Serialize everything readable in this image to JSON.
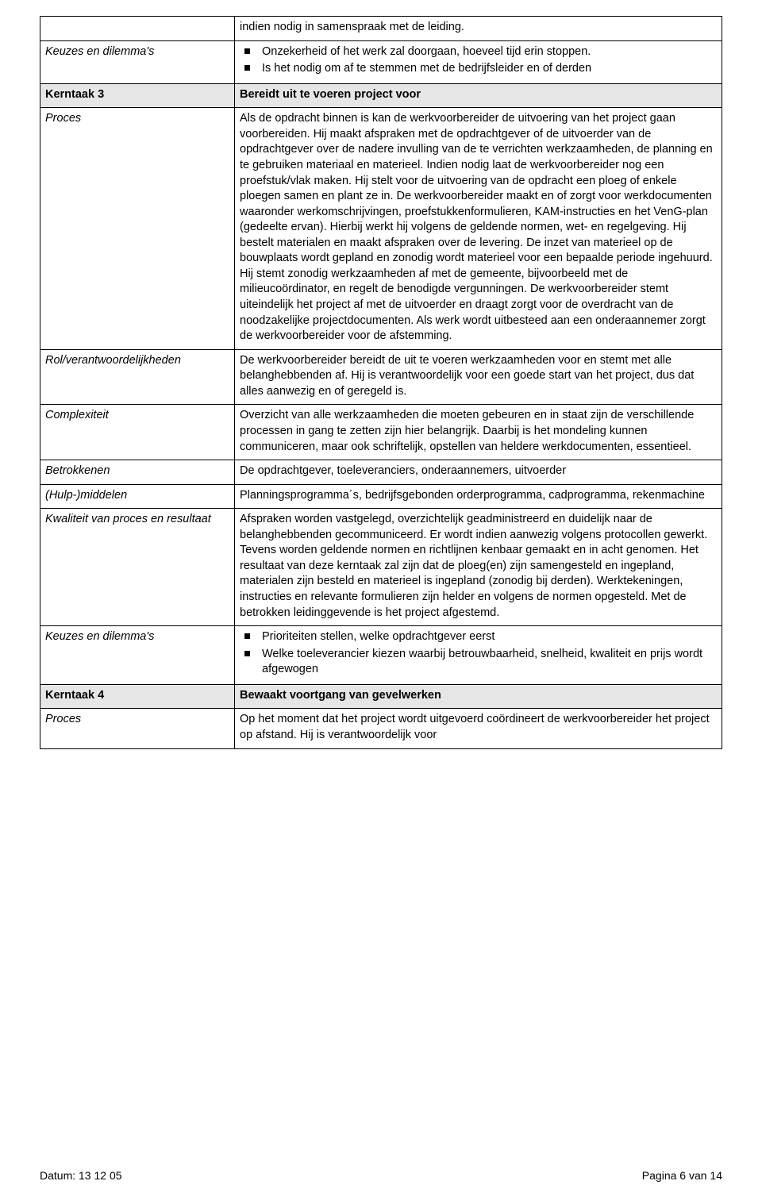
{
  "row1_top_text": "indien nodig in samenspraak met de leiding.",
  "labels": {
    "keuzes": "Keuzes en dilemma's",
    "kerntaak3": "Kerntaak 3",
    "proces": "Proces",
    "rol": "Rol/verantwoordelijkheden",
    "complexiteit": "Complexiteit",
    "betrokkenen": "Betrokkenen",
    "hulp": "(Hulp-)middelen",
    "kwaliteit": "Kwaliteit van proces en resultaat",
    "kerntaak4": "Kerntaak 4"
  },
  "keuzes1": {
    "b1": "Onzekerheid of het werk zal doorgaan, hoeveel tijd erin stoppen.",
    "b2": "Is het nodig om af te stemmen met de bedrijfsleider en of derden"
  },
  "kerntaak3_value": "Bereidt uit te voeren project voor",
  "proces1_value": "Als de opdracht binnen is kan de werkvoorbereider de uitvoering van het project gaan voorbereiden. Hij maakt afspraken met de opdrachtgever of de uitvoerder van de opdrachtgever over de nadere invulling van de te verrichten werkzaamheden, de planning en te gebruiken materiaal en materieel. Indien nodig laat de werkvoorbereider nog een proefstuk/vlak maken. Hij stelt voor de uitvoering van de opdracht een ploeg of enkele ploegen samen en plant ze in. De werkvoorbereider maakt en of zorgt voor werkdocumenten waaronder werkomschrijvingen, proefstukkenformulieren, KAM-instructies en het VenG-plan (gedeelte ervan). Hierbij werkt hij volgens de geldende normen, wet- en regelgeving. Hij bestelt materialen en maakt afspraken over de levering. De inzet van materieel op de bouwplaats wordt gepland en zonodig wordt materieel voor een bepaalde periode ingehuurd. Hij stemt zonodig werkzaamheden af met de gemeente, bijvoorbeeld met de milieucoördinator, en regelt de benodigde vergunningen. De werkvoorbereider stemt uiteindelijk het project af met de uitvoerder en draagt zorgt voor de overdracht van de noodzakelijke projectdocumenten. Als werk wordt uitbesteed aan een onderaannemer zorgt de werkvoorbereider voor de afstemming.",
  "rol_value": "De werkvoorbereider bereidt de uit te voeren werkzaamheden voor en stemt met alle belanghebbenden af. Hij is verantwoordelijk voor een goede start van het project, dus dat alles aanwezig en of geregeld is.",
  "complex_value": "Overzicht van alle werkzaamheden die moeten gebeuren en in staat zijn de verschillende processen in gang te zetten zijn hier belangrijk. Daarbij is het mondeling kunnen communiceren, maar ook schriftelijk, opstellen van heldere werkdocumenten, essentieel.",
  "betrokkenen_value": "De opdrachtgever, toeleveranciers, onderaannemers, uitvoerder",
  "hulp_value": "Planningsprogramma´s, bedrijfsgebonden orderprogramma, cadprogramma, rekenmachine",
  "kwaliteit_value": "Afspraken worden vastgelegd, overzichtelijk geadministreerd en duidelijk naar de belanghebbenden gecommuniceerd. Er wordt indien aanwezig volgens protocollen gewerkt. Tevens worden geldende normen en richtlijnen kenbaar gemaakt en in acht genomen. Het resultaat van deze kerntaak zal zijn dat de ploeg(en) zijn samengesteld en ingepland, materialen zijn besteld en materieel is ingepland (zonodig bij derden). Werktekeningen, instructies en relevante formulieren zijn helder en volgens de normen opgesteld. Met de betrokken leidinggevende is het project afgestemd.",
  "keuzes2": {
    "b1": "Prioriteiten stellen, welke opdrachtgever eerst",
    "b2": "Welke toeleverancier kiezen waarbij betrouwbaarheid, snelheid, kwaliteit en prijs wordt afgewogen"
  },
  "kerntaak4_value": "Bewaakt voortgang van gevelwerken",
  "proces2_value": "Op het moment dat het project wordt uitgevoerd coördineert de werkvoorbereider het project op afstand. Hij is verantwoordelijk voor",
  "footer_left": "Datum: 13 12 05",
  "footer_right": "Pagina 6 van 14"
}
